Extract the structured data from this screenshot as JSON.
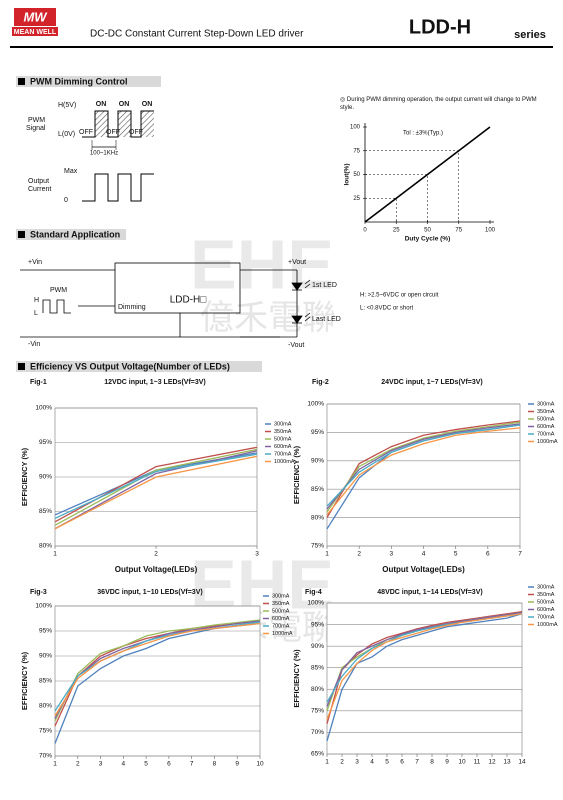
{
  "header": {
    "logo_mark": "MW",
    "logo_text": "MEAN WELL",
    "subtitle": "DC-DC Constant Current Step-Down LED driver",
    "model": "LDD-H",
    "series": "series"
  },
  "watermark": {
    "latin": "EHE",
    "chinese": "億禾電聯"
  },
  "sections": [
    "PWM Dimming Control",
    "Standard Application",
    "Efficiency VS Output Voltage(Number of LEDs)"
  ],
  "pwm_diagram": {
    "high": "H(5V)",
    "low": "L(0V)",
    "signal_label": [
      "PWM",
      "Signal"
    ],
    "on": "ON",
    "off": "OFF",
    "frequency": "100~1KHz",
    "current_label": [
      "Output",
      "Current"
    ],
    "max": "Max",
    "zero": "0"
  },
  "application": {
    "vin_pos": "+Vin",
    "vin_neg": "-Vin",
    "pwm": "PWM",
    "h": "H",
    "l": "L",
    "dimming": "Dimming",
    "device": "LDD-H□",
    "vout_pos": "+Vout",
    "vout_neg": "-Vout",
    "first_led": "1st LED",
    "last_led": "Last LED",
    "h_note": "H: >2.5~6VDC or open circuit",
    "l_note": "L: <0.8VDC or short"
  },
  "chart_data": [
    {
      "type": "line",
      "note": "◎ During PWM dimming operation, the output current will change to PWM style.",
      "annotation": "Tol : ±3%(Typ.)",
      "x_label": "Duty Cycle (%)",
      "y_label": "Iout(%)",
      "x": [
        0,
        100
      ],
      "values": [
        0,
        100
      ],
      "color": "#000000",
      "xlim": [
        0,
        100
      ],
      "xticks": [
        0,
        25,
        50,
        75,
        100
      ],
      "ylim": [
        0,
        100
      ],
      "yticks": [
        25,
        50,
        75,
        100
      ]
    },
    {
      "type": "line",
      "label": "Fig-1",
      "title": "12VDC input, 1~3 LEDs(Vf=3V)",
      "x_label": "Output Voltage(LEDs)",
      "y_label": "EFFICIENCY (%)",
      "x": [
        1,
        2,
        3
      ],
      "xlim": [
        1,
        3
      ],
      "xticks": [
        1,
        2,
        3
      ],
      "ylim": [
        80,
        100
      ],
      "yticks": [
        {
          "value": 80,
          "label": "80%"
        },
        {
          "value": 85,
          "label": "85%"
        },
        {
          "value": 90,
          "label": "90%"
        },
        {
          "value": 95,
          "label": "95%"
        },
        {
          "value": 100,
          "label": "100%"
        }
      ],
      "grid": true,
      "series": [
        {
          "name": "300mA",
          "color": "#4f81bd",
          "values": [
            84.5,
            91,
            93.5
          ]
        },
        {
          "name": "350mA",
          "color": "#c0504d",
          "values": [
            83.5,
            91.5,
            94.3
          ]
        },
        {
          "name": "500mA",
          "color": "#9bbb59",
          "values": [
            83,
            91,
            94
          ]
        },
        {
          "name": "600mA",
          "color": "#8064a2",
          "values": [
            82.5,
            90.5,
            93.8
          ]
        },
        {
          "name": "700mA",
          "color": "#4bacc6",
          "values": [
            84,
            90.8,
            93.3
          ]
        },
        {
          "name": "1000mA",
          "color": "#f79646",
          "values": [
            82.5,
            90,
            93
          ]
        }
      ]
    },
    {
      "type": "line",
      "label": "Fig-2",
      "title": "24VDC input, 1~7 LEDs(Vf=3V)",
      "x_label": "Output Voltage(LEDs)",
      "y_label": "EFFICIENCY (%)",
      "x": [
        1,
        2,
        3,
        4,
        5,
        6,
        7
      ],
      "xlim": [
        1,
        7
      ],
      "xticks": [
        1,
        2,
        3,
        4,
        5,
        6,
        7
      ],
      "ylim": [
        75,
        100
      ],
      "yticks": [
        {
          "value": 75,
          "label": "75%"
        },
        {
          "value": 80,
          "label": "80%"
        },
        {
          "value": 85,
          "label": "85%"
        },
        {
          "value": 90,
          "label": "90%"
        },
        {
          "value": 95,
          "label": "95%"
        },
        {
          "value": 100,
          "label": "100%"
        }
      ],
      "grid": true,
      "series": [
        {
          "name": "300mA",
          "color": "#4f81bd",
          "values": [
            78,
            87,
            91.5,
            93.5,
            94.8,
            95.5,
            96.3
          ]
        },
        {
          "name": "350mA",
          "color": "#c0504d",
          "values": [
            80,
            89.5,
            92.5,
            94.5,
            95.5,
            96.3,
            97
          ]
        },
        {
          "name": "500mA",
          "color": "#9bbb59",
          "values": [
            81,
            89,
            92,
            94,
            95.2,
            96,
            96.8
          ]
        },
        {
          "name": "600mA",
          "color": "#8064a2",
          "values": [
            81.5,
            88.5,
            91.8,
            93.8,
            95,
            95.8,
            96.5
          ]
        },
        {
          "name": "700mA",
          "color": "#4bacc6",
          "values": [
            82,
            88,
            91.5,
            93.5,
            94.8,
            95.5,
            96.3
          ]
        },
        {
          "name": "1000mA",
          "color": "#f79646",
          "values": [
            80.5,
            87.5,
            91,
            93,
            94.5,
            95.2,
            95.8
          ]
        }
      ]
    },
    {
      "type": "line",
      "label": "Fig-3",
      "title": "36VDC input, 1~10 LEDs(Vf=3V)",
      "y_label": "EFFICIENCY (%)",
      "x": [
        1,
        2,
        3,
        4,
        5,
        6,
        7,
        8,
        9,
        10
      ],
      "xlim": [
        1,
        10
      ],
      "xticks": [
        1,
        2,
        3,
        4,
        5,
        6,
        7,
        8,
        9,
        10
      ],
      "ylim": [
        70,
        100
      ],
      "yticks": [
        {
          "value": 70,
          "label": "70%"
        },
        {
          "value": 75,
          "label": "75%"
        },
        {
          "value": 80,
          "label": "80%"
        },
        {
          "value": 85,
          "label": "85%"
        },
        {
          "value": 90,
          "label": "90%"
        },
        {
          "value": 95,
          "label": "95%"
        },
        {
          "value": 100,
          "label": "100%"
        }
      ],
      "grid": true,
      "series": [
        {
          "name": "300mA",
          "color": "#4f81bd",
          "values": [
            72.5,
            84,
            87.5,
            90,
            91.5,
            93.5,
            94.5,
            95.5,
            96,
            96.5
          ]
        },
        {
          "name": "350mA",
          "color": "#c0504d",
          "values": [
            76,
            86,
            90,
            92,
            93.5,
            94.5,
            95.5,
            96,
            96.5,
            97
          ]
        },
        {
          "name": "500mA",
          "color": "#9bbb59",
          "values": [
            77,
            86.5,
            90.5,
            92,
            94,
            95,
            95.5,
            96.2,
            96.7,
            97.2
          ]
        },
        {
          "name": "600mA",
          "color": "#8064a2",
          "values": [
            77.5,
            86,
            89.5,
            91.5,
            93,
            94.5,
            95.2,
            95.8,
            96.5,
            97
          ]
        },
        {
          "name": "700mA",
          "color": "#4bacc6",
          "values": [
            79,
            86,
            89,
            91,
            93,
            94.2,
            95,
            95.5,
            96.2,
            96.8
          ]
        },
        {
          "name": "1000mA",
          "color": "#f79646",
          "values": [
            78,
            85.5,
            89,
            91,
            92.5,
            94,
            95,
            95.5,
            96,
            96.5
          ]
        }
      ]
    },
    {
      "type": "line",
      "label": "Fig-4",
      "title": "48VDC input, 1~14 LEDs(Vf=3V)",
      "y_label": "EFFICIENCY (%)",
      "x": [
        1,
        2,
        3,
        4,
        5,
        6,
        7,
        8,
        9,
        10,
        11,
        12,
        13,
        14
      ],
      "xlim": [
        1,
        14
      ],
      "xticks": [
        1,
        2,
        3,
        4,
        5,
        6,
        7,
        8,
        9,
        10,
        11,
        12,
        13,
        14
      ],
      "ylim": [
        65,
        100
      ],
      "yticks": [
        {
          "value": 65,
          "label": "65%"
        },
        {
          "value": 70,
          "label": "70%"
        },
        {
          "value": 75,
          "label": "75%"
        },
        {
          "value": 80,
          "label": "80%"
        },
        {
          "value": 85,
          "label": "85%"
        },
        {
          "value": 90,
          "label": "90%"
        },
        {
          "value": 95,
          "label": "95%"
        },
        {
          "value": 100,
          "label": "100%"
        }
      ],
      "grid": true,
      "series": [
        {
          "name": "300mA",
          "color": "#4f81bd",
          "values": [
            68,
            80,
            86,
            87.5,
            90,
            91.5,
            92.5,
            93.5,
            94.5,
            95,
            95.5,
            96,
            96.5,
            97.5
          ]
        },
        {
          "name": "350mA",
          "color": "#c0504d",
          "values": [
            72,
            84.5,
            88,
            90.5,
            92,
            93,
            94,
            94.8,
            95.5,
            96,
            96.5,
            97,
            97.5,
            98
          ]
        },
        {
          "name": "500mA",
          "color": "#9bbb59",
          "values": [
            75,
            85,
            87.5,
            89.5,
            91.5,
            92.5,
            93.5,
            94.5,
            95.2,
            95.8,
            96.3,
            96.8,
            97.3,
            97.8
          ]
        },
        {
          "name": "600mA",
          "color": "#8064a2",
          "values": [
            76,
            84.5,
            88.5,
            90,
            91.5,
            92.8,
            93.8,
            94.5,
            95.2,
            95.8,
            96.3,
            96.8,
            97.3,
            97.8
          ]
        },
        {
          "name": "700mA",
          "color": "#4bacc6",
          "values": [
            77,
            83,
            87,
            89.5,
            91,
            92.5,
            93.5,
            94.3,
            95,
            95.5,
            96,
            96.5,
            97,
            97.5
          ]
        },
        {
          "name": "1000mA",
          "color": "#f79646",
          "values": [
            73,
            82,
            86,
            89,
            91,
            92,
            93,
            94,
            94.8,
            95.5,
            96,
            96.5,
            97,
            97.5
          ]
        }
      ]
    }
  ]
}
